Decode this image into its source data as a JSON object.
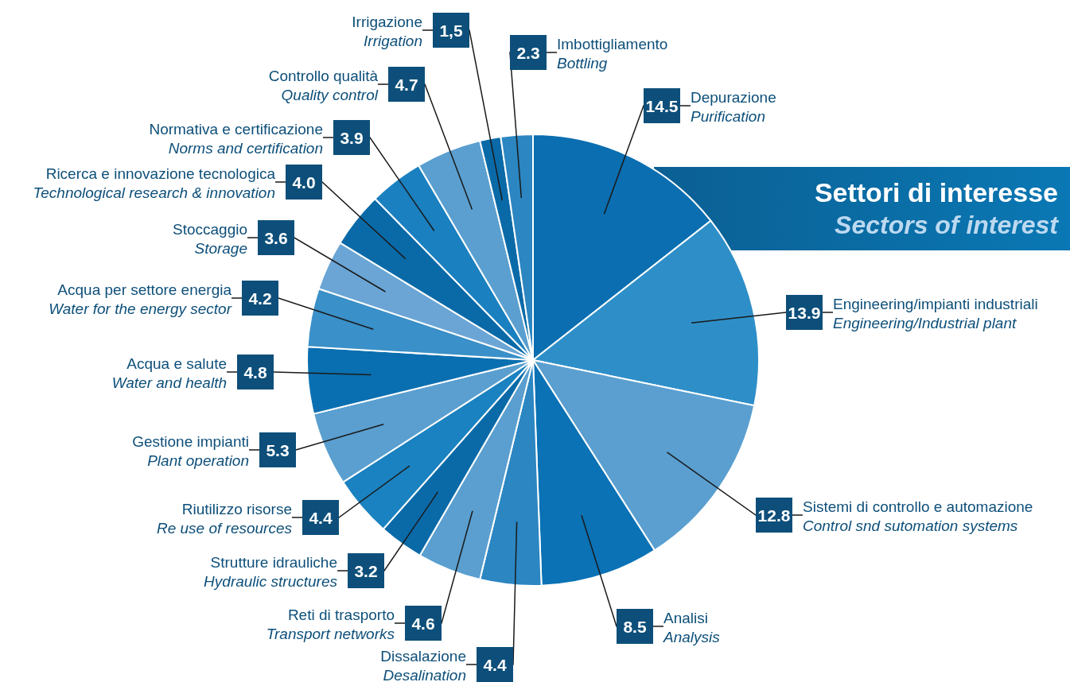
{
  "chart_data": {
    "type": "pie",
    "title": "Settori di interesse",
    "subtitle": "Sectors of interest",
    "categories": [
      "Depurazione\nPurification",
      "Engineering/impianti industriali\nEngineering/Industrial plant",
      "Sistemi di controllo e automazione\nControl snd sutomation systems",
      "Analisi\nAnalysis",
      "Dissalazione\nDesalination",
      "Reti di trasporto\nTransport networks",
      "Strutture idrauliche\nHydraulic structures",
      "Riutilizzo risorse\nRe use of resources",
      "Gestione impianti\nPlant operation",
      "Acqua e salute\nWater and health",
      "Acqua per settore energia\nWater for the energy sector",
      "Stoccaggio\nStorage",
      "Ricerca e innovazione tecnologica\nTechnological research & innovation",
      "Normativa e certificazione\nNorms and certification",
      "Controllo qualità\nQuality control",
      "Irrigazione\nIrrigation",
      "Imbottigliamento\nBottling"
    ],
    "values": [
      14.5,
      13.9,
      12.8,
      8.5,
      4.4,
      4.6,
      3.2,
      4.4,
      5.3,
      4.8,
      4.2,
      3.6,
      4.0,
      3.9,
      4.7,
      1.5,
      2.3
    ],
    "value_labels": [
      "14.5",
      "13.9",
      "12.8",
      "8.5",
      "4.4",
      "4.6",
      "3.2",
      "4.4",
      "5.3",
      "4.8",
      "4.2",
      "3.6",
      "4.0",
      "3.9",
      "4.7",
      "1,5",
      "2.3"
    ],
    "colors": [
      "#0a6eb0",
      "#2e8fc8",
      "#5a9fd0",
      "#0a72b5",
      "#2b86c2",
      "#5a9fd0",
      "#0a6aa8",
      "#1a82c0",
      "#5a9fd0",
      "#0a6fb0",
      "#3a90c8",
      "#6aa5d5",
      "#0a6aa8",
      "#1a80c0",
      "#5a9fd0",
      "#0a6aa8",
      "#2b86c2"
    ]
  }
}
